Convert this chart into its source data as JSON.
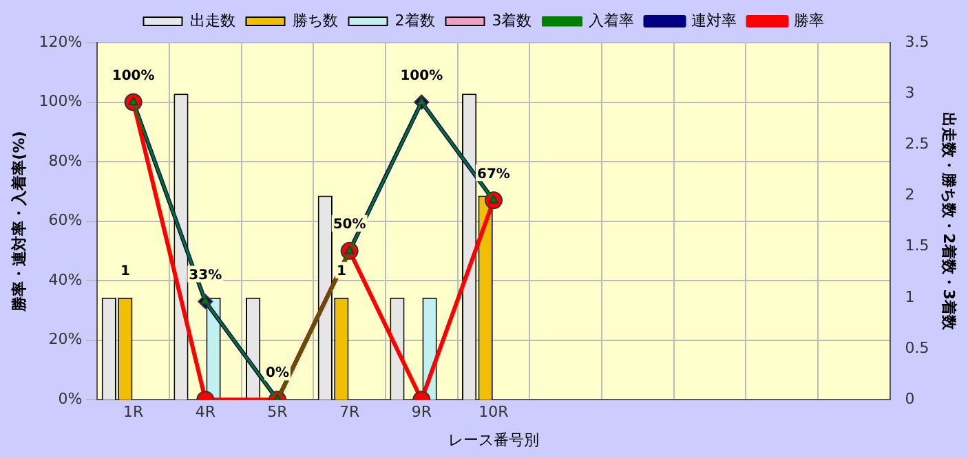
{
  "chart_data": {
    "type": "bar",
    "xlabel": "レース番号別",
    "ylabel": "勝率・連対率・入着率(%)",
    "y2label": "出走数・勝ち数・2着数・3着数",
    "categories": [
      "1R",
      "4R",
      "5R",
      "7R",
      "9R",
      "10R",
      null,
      null,
      null,
      null,
      null
    ],
    "series": [
      {
        "name": "出走数",
        "axis": "y2",
        "color": "#e6e6e6",
        "values": [
          1,
          3,
          1,
          2,
          1,
          3,
          null,
          null,
          null,
          null,
          null
        ]
      },
      {
        "name": "勝ち数",
        "axis": "y2",
        "color": "#f0c000",
        "values": [
          1,
          0,
          0,
          1,
          0,
          2,
          null,
          null,
          null,
          null,
          null
        ],
        "value_labels": [
          "1",
          null,
          null,
          "1",
          null,
          null,
          null,
          null,
          null,
          null,
          null
        ]
      },
      {
        "name": "2着数",
        "axis": "y2",
        "color": "#c0f0f0",
        "values": [
          0,
          1,
          0,
          0,
          1,
          0,
          null,
          null,
          null,
          null,
          null
        ]
      },
      {
        "name": "3着数",
        "axis": "y2",
        "color": "#f0a0c8",
        "values": [
          0,
          0,
          0,
          0,
          0,
          0,
          null,
          null,
          null,
          null,
          null
        ]
      },
      {
        "name": "入着率",
        "type": "line",
        "color": "#008000",
        "marker": "triangle",
        "values": [
          100,
          33,
          0,
          50,
          100,
          67,
          null,
          null,
          null,
          null,
          null
        ]
      },
      {
        "name": "連対率",
        "type": "line",
        "color": "#000080",
        "marker": "diamond",
        "values": [
          100,
          33,
          0,
          50,
          100,
          67,
          null,
          null,
          null,
          null,
          null
        ],
        "value_labels": [
          "100%",
          "33%",
          "0%",
          "50%",
          "100%",
          "67%",
          null,
          null,
          null,
          null,
          null
        ]
      },
      {
        "name": "勝率",
        "type": "line",
        "color": "#ff0000",
        "marker": "circle",
        "values": [
          100,
          0,
          0,
          50,
          0,
          67,
          null,
          null,
          null,
          null,
          null
        ]
      }
    ],
    "ylim": [
      0,
      120
    ],
    "yticks": [
      {
        "value": 0,
        "label": "0%"
      },
      {
        "value": 20,
        "label": "20%"
      },
      {
        "value": 40,
        "label": "40%"
      },
      {
        "value": 60,
        "label": "60%"
      },
      {
        "value": 80,
        "label": "80%"
      },
      {
        "value": 100,
        "label": "100%"
      },
      {
        "value": 120,
        "label": "120%"
      }
    ],
    "y2lim": [
      0,
      3.5
    ],
    "y2ticks": [
      0,
      0.5,
      1,
      1.5,
      2,
      2.5,
      3,
      3.5
    ],
    "grid": true,
    "legend": "top",
    "line_style": "solid"
  }
}
